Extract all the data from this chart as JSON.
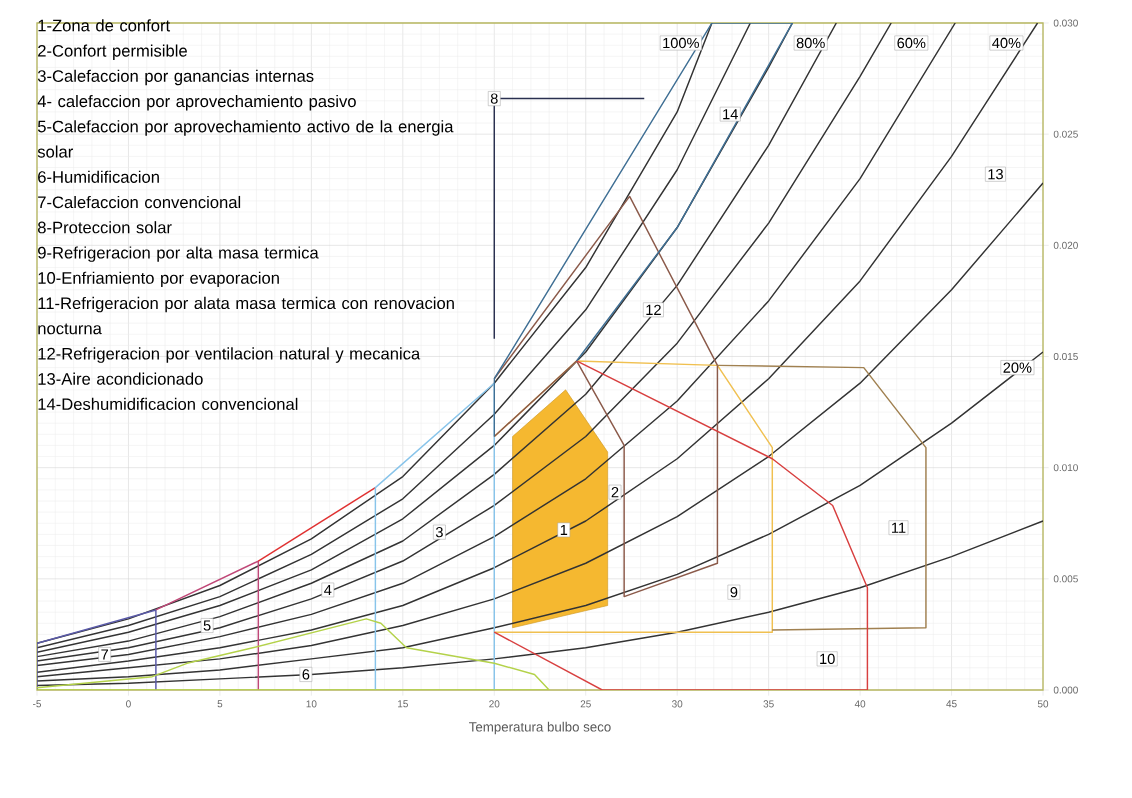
{
  "chart_data": {
    "type": "line",
    "xlabel": "Temperatura bulbo seco",
    "xlim": [
      -5,
      50
    ],
    "ylim": [
      0,
      0.03
    ],
    "xticks": [
      -5,
      0,
      5,
      10,
      15,
      20,
      25,
      30,
      35,
      40,
      45,
      50
    ],
    "yticks": [
      {
        "value": 0,
        "label": "0.000"
      },
      {
        "value": 0.005,
        "label": "0.005"
      },
      {
        "value": 0.01,
        "label": "0.010"
      },
      {
        "value": 0.015,
        "label": "0.015"
      },
      {
        "value": 0.02,
        "label": "0.020"
      },
      {
        "value": 0.025,
        "label": "0.025"
      },
      {
        "value": 0.03,
        "label": "0.030"
      }
    ],
    "grid": true,
    "series": [
      {
        "type": "area",
        "color": "#f5b830",
        "x": [
          21.0,
          23.9,
          26.2,
          26.2,
          21.0
        ],
        "values": [
          0.0114,
          0.0135,
          0.0107,
          0.0038,
          0.0028
        ]
      },
      {
        "color": "#333333",
        "x": [
          -5,
          0,
          5,
          10,
          15,
          20,
          25,
          30,
          35,
          40,
          45,
          50
        ],
        "values": [
          0.0002,
          0.0003,
          0.0005,
          0.0007,
          0.001,
          0.0014,
          0.0019,
          0.0026,
          0.0035,
          0.0046,
          0.006,
          0.0076
        ]
      },
      {
        "color": "#333333",
        "x": [
          -5,
          0,
          5,
          10,
          15,
          20,
          25,
          30,
          35,
          40,
          45,
          50
        ],
        "values": [
          0.0004,
          0.0006,
          0.0009,
          0.0014,
          0.0019,
          0.0028,
          0.0038,
          0.0052,
          0.007,
          0.0092,
          0.012,
          0.0152
        ]
      },
      {
        "color": "#333333",
        "x": [
          -5,
          0,
          5,
          10,
          15,
          20,
          25,
          30,
          35,
          40,
          45,
          50
        ],
        "values": [
          0.0006,
          0.001,
          0.0014,
          0.002,
          0.0029,
          0.0041,
          0.0057,
          0.0078,
          0.0105,
          0.0138,
          0.018,
          0.0228
        ]
      },
      {
        "color": "#333333",
        "x": [
          -5,
          0,
          5,
          10,
          15,
          20,
          25,
          30,
          35,
          40,
          45,
          49.7
        ],
        "values": [
          0.0008,
          0.0013,
          0.0019,
          0.0027,
          0.0038,
          0.0055,
          0.0076,
          0.0104,
          0.014,
          0.0184,
          0.024,
          0.03
        ]
      },
      {
        "color": "#333333",
        "x": [
          -5,
          0,
          5,
          10,
          15,
          20,
          25,
          30,
          35,
          40,
          45.2
        ],
        "values": [
          0.0011,
          0.0016,
          0.0024,
          0.0034,
          0.0048,
          0.0069,
          0.0095,
          0.013,
          0.0175,
          0.023,
          0.03
        ]
      },
      {
        "color": "#333333",
        "x": [
          -5,
          0,
          5,
          10,
          15,
          20,
          25,
          30,
          35,
          40,
          41.7
        ],
        "values": [
          0.0013,
          0.0019,
          0.0028,
          0.0041,
          0.0058,
          0.0083,
          0.0114,
          0.0156,
          0.021,
          0.0276,
          0.03
        ]
      },
      {
        "color": "#333333",
        "x": [
          -5,
          0,
          5,
          10,
          15,
          20,
          25,
          30,
          35,
          38.7
        ],
        "values": [
          0.0015,
          0.0022,
          0.0033,
          0.0048,
          0.0067,
          0.0097,
          0.0133,
          0.0182,
          0.0245,
          0.03
        ]
      },
      {
        "color": "#333333",
        "x": [
          -5,
          0,
          5,
          10,
          15,
          20,
          25,
          30,
          35,
          36.3
        ],
        "values": [
          0.0017,
          0.0026,
          0.0038,
          0.0054,
          0.0077,
          0.011,
          0.0152,
          0.0208,
          0.028,
          0.03
        ]
      },
      {
        "color": "#333333",
        "x": [
          -5,
          0,
          5,
          10,
          15,
          20,
          25,
          30,
          34.0
        ],
        "values": [
          0.0019,
          0.0029,
          0.0042,
          0.0061,
          0.0086,
          0.0124,
          0.0171,
          0.0234,
          0.03
        ]
      },
      {
        "color": "#333333",
        "x": [
          -5,
          0,
          5,
          10,
          15,
          20,
          25,
          30,
          31.9
        ],
        "values": [
          0.0021,
          0.0032,
          0.0047,
          0.0068,
          0.0096,
          0.0138,
          0.019,
          0.026,
          0.03
        ]
      },
      {
        "color": "#5a5aa8",
        "x": [
          -5.0,
          -5.0,
          1.5,
          1.5
        ],
        "values": [
          0.0,
          0.0021,
          0.0036,
          0.0
        ]
      },
      {
        "color": "#c04878",
        "x": [
          1.5,
          7.1,
          7.1
        ],
        "values": [
          0.0036,
          0.0058,
          0.0
        ]
      },
      {
        "color": "#e03030",
        "x": [
          7.1,
          13.5
        ],
        "values": [
          0.0058,
          0.0091
        ]
      },
      {
        "color": "#88c4ea",
        "x": [
          13.5,
          13.5,
          20.0,
          20.0
        ],
        "values": [
          0.0,
          0.0091,
          0.0138,
          0.0
        ]
      },
      {
        "color": "#b4d24a",
        "x": [
          -5.0,
          1.3,
          3.2,
          6.8,
          13.0,
          13.8,
          15.2,
          20.0,
          22.2,
          23.0,
          -5.0
        ],
        "values": [
          0.0001,
          0.0006,
          0.0012,
          0.0019,
          0.0032,
          0.003,
          0.0019,
          0.0012,
          0.0007,
          0.0,
          0.0
        ]
      },
      {
        "color": "#f0c050",
        "x": [
          20.0,
          24.5,
          32.2,
          35.2,
          35.2,
          20.0
        ],
        "values": [
          0.0114,
          0.0148,
          0.0146,
          0.0109,
          0.0026,
          0.0026
        ]
      },
      {
        "color": "#8b5a4a",
        "x": [
          20.0,
          24.5,
          27.1,
          27.1,
          32.2,
          32.2,
          27.4,
          20.0
        ],
        "values": [
          0.0114,
          0.0148,
          0.011,
          0.0042,
          0.0057,
          0.0146,
          0.0222,
          0.014
        ]
      },
      {
        "color": "#a08050",
        "x": [
          35.2,
          43.6,
          43.6,
          40.2,
          32.2
        ],
        "values": [
          0.0027,
          0.0028,
          0.0109,
          0.0145,
          0.0146
        ]
      },
      {
        "color": "#d84040",
        "x": [
          24.5,
          35.2,
          38.5,
          40.4,
          40.4,
          25.9,
          20.0
        ],
        "values": [
          0.0148,
          0.0104,
          0.0083,
          0.0046,
          0.0,
          0.0,
          0.0026
        ]
      },
      {
        "color": "#3f6f94",
        "x": [
          20.0,
          20.0,
          31.9,
          36.3,
          30.0,
          24.5
        ],
        "values": [
          0.0114,
          0.014,
          0.03,
          0.03,
          0.0208,
          0.0148
        ]
      },
      {
        "color": "#2a3050",
        "x": [
          28.2,
          20.0,
          20.0
        ],
        "values": [
          0.0266,
          0.0266,
          0.0158
        ]
      }
    ],
    "annotations": [
      "1-Zona de confort",
      "2-Confort permisible",
      "3-Calefaccion por ganancias internas",
      "4- calefaccion por aprovechamiento pasivo",
      "5-Calefaccion por aprovechamiento activo de la energia solar",
      "6-Humidificacion",
      "7-Calefaccion convencional",
      "8-Proteccion solar",
      "9-Refrigeracion por alta masa termica",
      "10-Enfriamiento por evaporacion",
      "11-Refrigeracion por alata masa termica con renovacion nocturna",
      "12-Refrigeracion por ventilacion natural  y mecanica",
      "13-Aire acondicionado",
      "14-Deshumidificacion convencional",
      {
        "text": "1",
        "x": 23.8,
        "y": 0.0072
      },
      {
        "text": "2",
        "x": 26.6,
        "y": 0.0089
      },
      {
        "text": "3",
        "x": 17.0,
        "y": 0.0071
      },
      {
        "text": "4",
        "x": 10.9,
        "y": 0.0045
      },
      {
        "text": "5",
        "x": 4.3,
        "y": 0.0029
      },
      {
        "text": "6",
        "x": 9.7,
        "y": 0.0007
      },
      {
        "text": "7",
        "x": -1.3,
        "y": 0.0016
      },
      {
        "text": "8",
        "x": 20.0,
        "y": 0.0266
      },
      {
        "text": "9",
        "x": 33.1,
        "y": 0.0044
      },
      {
        "text": "10",
        "x": 38.2,
        "y": 0.0014
      },
      {
        "text": "11",
        "x": 42.1,
        "y": 0.0073
      },
      {
        "text": "12",
        "x": 28.7,
        "y": 0.0171
      },
      {
        "text": "13",
        "x": 47.4,
        "y": 0.0232
      },
      {
        "text": "14",
        "x": 32.9,
        "y": 0.0259
      },
      {
        "text": "100%",
        "x": 30.2,
        "y": 0.0291
      },
      {
        "text": "80%",
        "x": 37.3,
        "y": 0.0291
      },
      {
        "text": "60%",
        "x": 42.8,
        "y": 0.0291
      },
      {
        "text": "40%",
        "x": 48.0,
        "y": 0.0291
      },
      {
        "text": "20%",
        "x": 48.6,
        "y": 0.0145
      }
    ]
  }
}
